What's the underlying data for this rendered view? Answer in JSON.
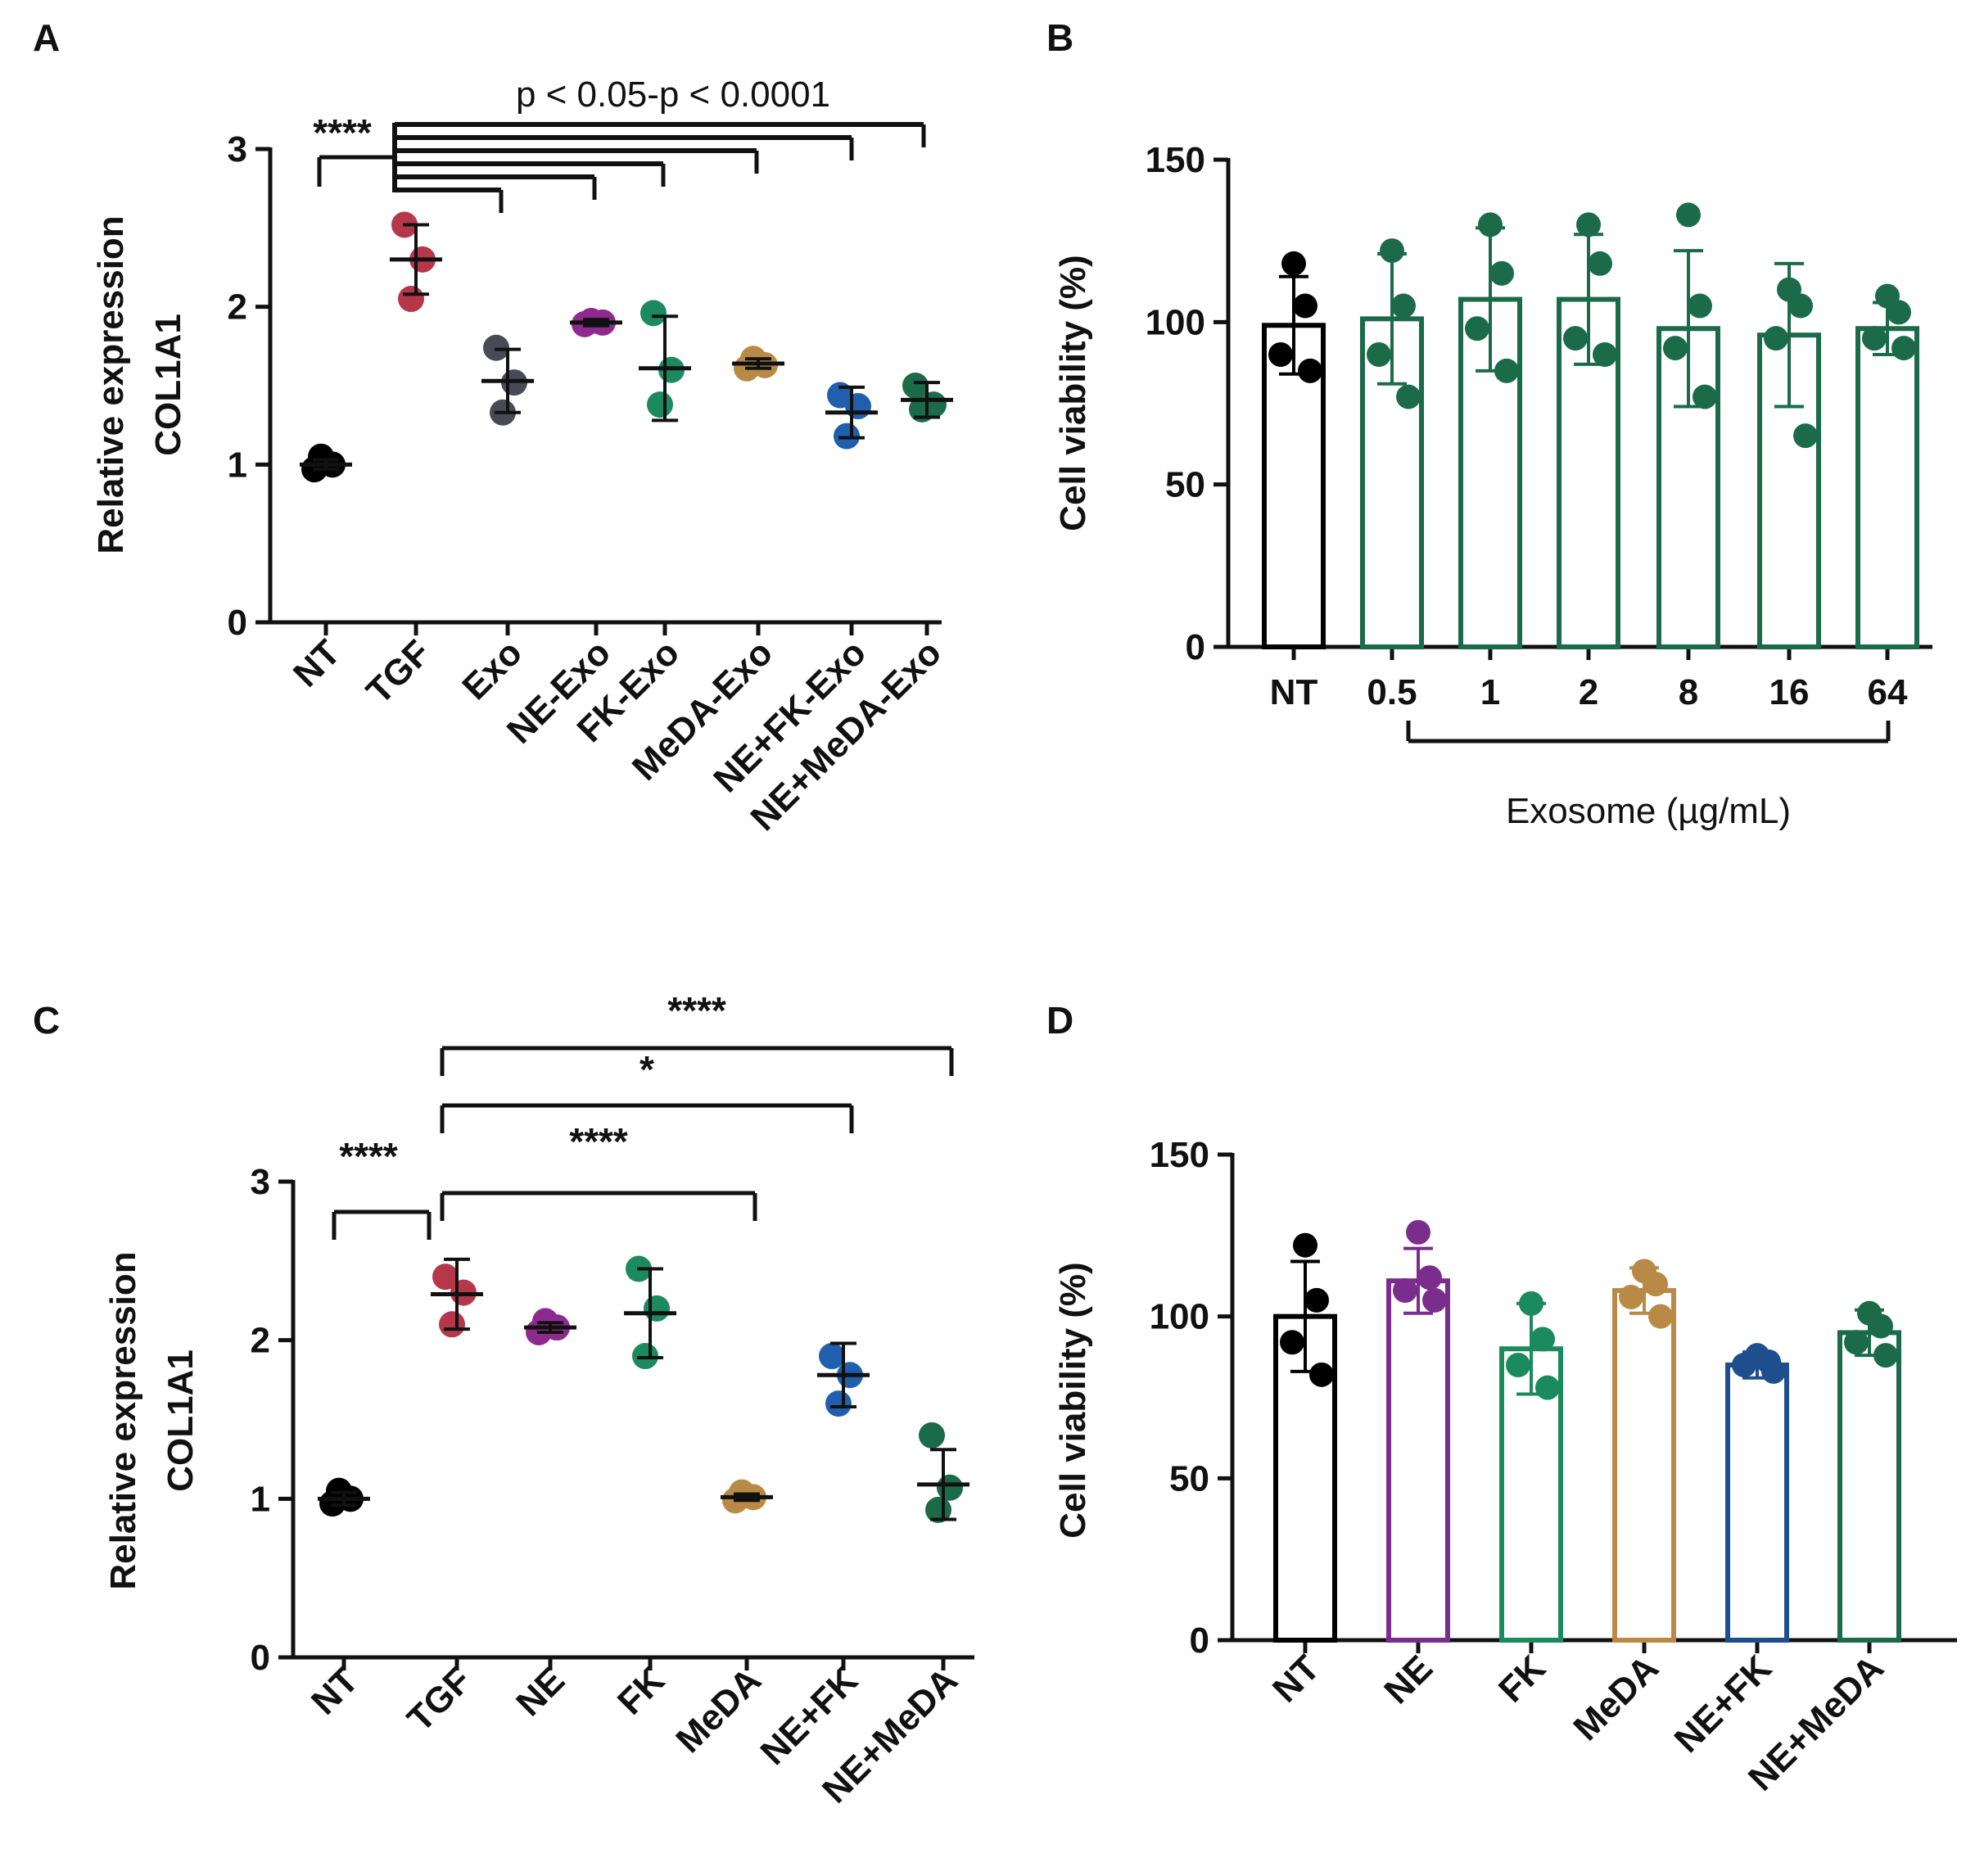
{
  "panels": [
    {
      "id": "A",
      "type": "scatter",
      "letter": "A",
      "ylabel_line1": "Relative expression",
      "ylabel_line2": "COL1A1",
      "ylim": [
        0,
        3
      ],
      "yticks": [
        "0",
        "1",
        "2",
        "3"
      ],
      "categories": [
        "NT",
        "TGF",
        "Exo",
        "NE-Exo",
        "FK-Exo",
        "MeDA-Exo",
        "NE+FK-Exo",
        "NE+MeDA-Exo"
      ],
      "groups": [
        {
          "color": "#000000",
          "points": [
            0.97,
            1.0,
            1.05
          ],
          "mean": 1.0,
          "sd": 0.03
        },
        {
          "color": "#b5374a",
          "points": [
            2.52,
            2.3,
            2.05
          ],
          "mean": 2.3,
          "sd": 0.22
        },
        {
          "color": "#4a4a55",
          "points": [
            1.74,
            1.52,
            1.33
          ],
          "mean": 1.53,
          "sd": 0.2
        },
        {
          "color": "#8e2a8e",
          "points": [
            1.89,
            1.9,
            1.91
          ],
          "mean": 1.9,
          "sd": 0.02
        },
        {
          "color": "#1b8a5e",
          "points": [
            1.96,
            1.6,
            1.38
          ],
          "mean": 1.61,
          "sd": 0.33
        },
        {
          "color": "#b98a45",
          "points": [
            1.61,
            1.63,
            1.67
          ],
          "mean": 1.64,
          "sd": 0.03
        },
        {
          "color": "#1f5fad",
          "points": [
            1.44,
            1.37,
            1.18
          ],
          "mean": 1.33,
          "sd": 0.16
        },
        {
          "color": "#1b6b4a",
          "points": [
            1.5,
            1.38,
            1.35
          ],
          "mean": 1.41,
          "sd": 0.11
        }
      ],
      "significance": {
        "main_stars": "****",
        "range_note": "p < 0.05-p < 0.0001"
      }
    },
    {
      "id": "B",
      "type": "bar",
      "letter": "B",
      "ylabel": "Cell viability (%)",
      "ylim": [
        0,
        150
      ],
      "yticks": [
        "0",
        "50",
        "100",
        "150"
      ],
      "categories": [
        "NT",
        "0.5",
        "1",
        "2",
        "8",
        "16",
        "64"
      ],
      "group_label": "Exosome (µg/mL)",
      "bars": [
        {
          "color": "#000000",
          "mean": 99,
          "sd": 15,
          "points": [
            118,
            105,
            90,
            85
          ]
        },
        {
          "color": "#1b6b4a",
          "mean": 101,
          "sd": 20,
          "points": [
            122,
            105,
            90,
            77
          ]
        },
        {
          "color": "#1b6b4a",
          "mean": 107,
          "sd": 22,
          "points": [
            130,
            115,
            98,
            85
          ]
        },
        {
          "color": "#1b6b4a",
          "mean": 107,
          "sd": 20,
          "points": [
            130,
            118,
            95,
            90
          ]
        },
        {
          "color": "#1b6b4a",
          "mean": 98,
          "sd": 24,
          "points": [
            133,
            105,
            92,
            77
          ]
        },
        {
          "color": "#1b6b4a",
          "mean": 96,
          "sd": 22,
          "points": [
            110,
            105,
            95,
            65
          ]
        },
        {
          "color": "#1b6b4a",
          "mean": 98,
          "sd": 8,
          "points": [
            108,
            103,
            95,
            92
          ]
        }
      ]
    },
    {
      "id": "C",
      "type": "scatter",
      "letter": "C",
      "ylabel_line1": "Relative expression",
      "ylabel_line2": "COL1A1",
      "ylim": [
        0,
        3
      ],
      "yticks": [
        "0",
        "1",
        "2",
        "3"
      ],
      "categories": [
        "NT",
        "TGF",
        "NE",
        "FK",
        "MeDA",
        "NE+FK",
        "NE+MeDA"
      ],
      "groups": [
        {
          "color": "#000000",
          "points": [
            0.97,
            1.0,
            1.05
          ],
          "mean": 1.0,
          "sd": 0.04
        },
        {
          "color": "#b5374a",
          "points": [
            2.4,
            2.3,
            2.1
          ],
          "mean": 2.29,
          "sd": 0.22
        },
        {
          "color": "#8e2a8e",
          "points": [
            2.05,
            2.08,
            2.12
          ],
          "mean": 2.08,
          "sd": 0.03
        },
        {
          "color": "#1b8a5e",
          "points": [
            2.45,
            2.2,
            1.9
          ],
          "mean": 2.17,
          "sd": 0.28
        },
        {
          "color": "#b98a45",
          "points": [
            0.99,
            1.01,
            1.04
          ],
          "mean": 1.01,
          "sd": 0.02
        },
        {
          "color": "#1f5fad",
          "points": [
            1.9,
            1.78,
            1.6
          ],
          "mean": 1.78,
          "sd": 0.2
        },
        {
          "color": "#1b6b4a",
          "points": [
            1.4,
            1.07,
            0.93
          ],
          "mean": 1.09,
          "sd": 0.22
        }
      ],
      "significance": [
        {
          "from": 0,
          "to": 1,
          "stars": "****"
        },
        {
          "from": 1,
          "to": 4,
          "stars": "****"
        },
        {
          "from": 1,
          "to": 5,
          "stars": "*"
        },
        {
          "from": 1,
          "to": 6,
          "stars": "****"
        }
      ]
    },
    {
      "id": "D",
      "type": "bar",
      "letter": "D",
      "ylabel": "Cell viability (%)",
      "ylim": [
        0,
        150
      ],
      "yticks": [
        "0",
        "50",
        "100",
        "150"
      ],
      "categories": [
        "NT",
        "NE",
        "FK",
        "MeDA",
        "NE+FK",
        "NE+MeDA"
      ],
      "bars": [
        {
          "color": "#000000",
          "mean": 100,
          "sd": 17,
          "points": [
            122,
            105,
            92,
            82
          ]
        },
        {
          "color": "#7a2d8c",
          "mean": 111,
          "sd": 10,
          "points": [
            126,
            112,
            108,
            105
          ]
        },
        {
          "color": "#1b8a5e",
          "mean": 90,
          "sd": 14,
          "points": [
            104,
            93,
            85,
            78
          ]
        },
        {
          "color": "#b98a45",
          "mean": 108,
          "sd": 7,
          "points": [
            114,
            110,
            106,
            100
          ]
        },
        {
          "color": "#1f4e8c",
          "mean": 85,
          "sd": 4,
          "points": [
            88,
            86,
            85,
            83
          ]
        },
        {
          "color": "#1b6b4a",
          "mean": 95,
          "sd": 7,
          "points": [
            101,
            97,
            92,
            88
          ]
        }
      ]
    }
  ],
  "chart_data": [
    {
      "type": "scatter",
      "title": "A",
      "xlabel": "",
      "ylabel": "Relative expression COL1A1",
      "ylim": [
        0,
        3
      ],
      "categories": [
        "NT",
        "TGF",
        "Exo",
        "NE-Exo",
        "FK-Exo",
        "MeDA-Exo",
        "NE+FK-Exo",
        "NE+MeDA-Exo"
      ],
      "series": [
        {
          "name": "mean",
          "values": [
            1.0,
            2.3,
            1.53,
            1.9,
            1.61,
            1.64,
            1.33,
            1.41
          ]
        }
      ],
      "annotations": [
        "****",
        "p < 0.05-p < 0.0001"
      ]
    },
    {
      "type": "bar",
      "title": "B",
      "xlabel": "Exosome (µg/mL)",
      "ylabel": "Cell viability (%)",
      "ylim": [
        0,
        150
      ],
      "categories": [
        "NT",
        "0.5",
        "1",
        "2",
        "8",
        "16",
        "64"
      ],
      "series": [
        {
          "name": "mean",
          "values": [
            99,
            101,
            107,
            107,
            98,
            96,
            98
          ]
        }
      ]
    },
    {
      "type": "scatter",
      "title": "C",
      "xlabel": "",
      "ylabel": "Relative expression COL1A1",
      "ylim": [
        0,
        3
      ],
      "categories": [
        "NT",
        "TGF",
        "NE",
        "FK",
        "MeDA",
        "NE+FK",
        "NE+MeDA"
      ],
      "series": [
        {
          "name": "mean",
          "values": [
            1.0,
            2.29,
            2.08,
            2.17,
            1.01,
            1.78,
            1.09
          ]
        }
      ],
      "annotations": [
        "****",
        "****",
        "*",
        "****"
      ]
    },
    {
      "type": "bar",
      "title": "D",
      "xlabel": "",
      "ylabel": "Cell viability (%)",
      "ylim": [
        0,
        150
      ],
      "categories": [
        "NT",
        "NE",
        "FK",
        "MeDA",
        "NE+FK",
        "NE+MeDA"
      ],
      "series": [
        {
          "name": "mean",
          "values": [
            100,
            111,
            90,
            108,
            85,
            95
          ]
        }
      ]
    }
  ]
}
